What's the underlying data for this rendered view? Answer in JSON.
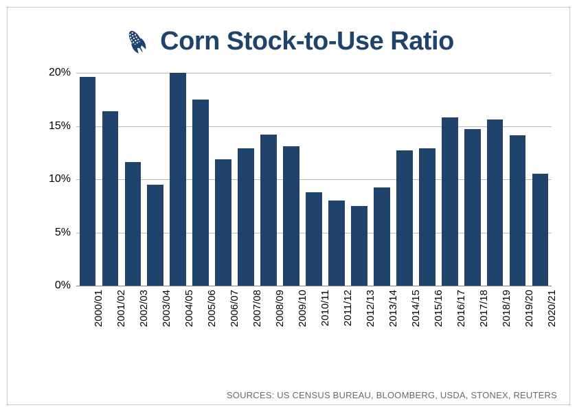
{
  "title": "Corn Stock-to-Use Ratio",
  "icon_name": "corn-icon",
  "chart": {
    "type": "bar",
    "categories": [
      "2000/01",
      "2001/02",
      "2002/03",
      "2003/04",
      "2004/05",
      "2005/06",
      "2006/07",
      "2007/08",
      "2008/09",
      "2009/10",
      "2010/11",
      "2011/12",
      "2012/13",
      "2013/14",
      "2014/15",
      "2015/16",
      "2016/17",
      "2017/18",
      "2018/19",
      "2019/20",
      "2020/21"
    ],
    "values": [
      19.6,
      16.4,
      11.6,
      9.5,
      20.0,
      17.5,
      11.9,
      12.9,
      14.2,
      13.1,
      8.8,
      8.0,
      7.5,
      9.2,
      12.7,
      12.9,
      15.8,
      14.7,
      15.6,
      14.1,
      10.5
    ],
    "ylim": [
      0,
      20
    ],
    "ytick_step": 5,
    "y_suffix": "%",
    "bar_color": "#1f436a",
    "grid_color": "#b8b8b8",
    "axis_color": "#7f7f7f",
    "background_color": "#ffffff",
    "text_color": "#000000",
    "title_color": "#1f436a",
    "title_fontsize": 38,
    "label_fontsize": 16,
    "category_fontsize": 15,
    "bar_width_ratio": 0.72
  },
  "sources_label": "SOURCES: US CENSUS BUREAU, BLOOMBERG, USDA, STONEX, REUTERS"
}
